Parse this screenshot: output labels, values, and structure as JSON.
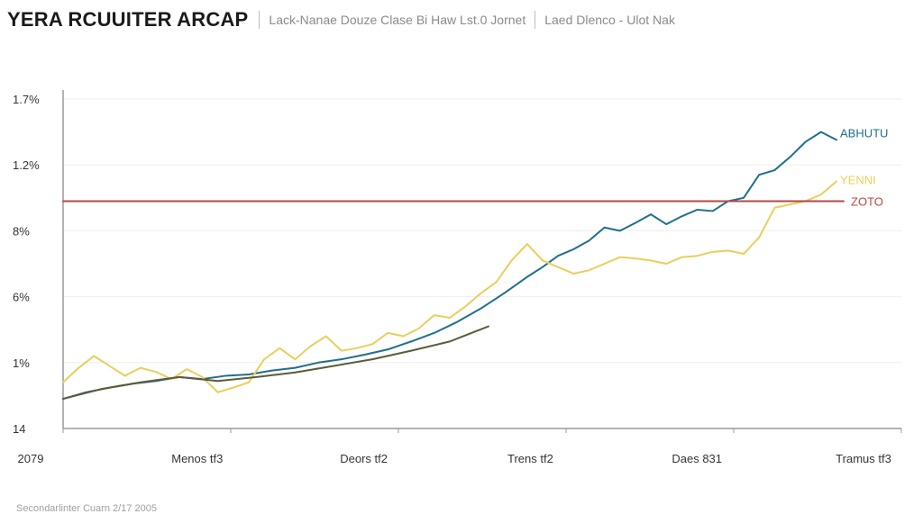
{
  "header": {
    "title": "YERA RCUUITER ARCAP",
    "subtitle_1": "Lack-Nanae Douze Clase Bi Haw Lst.0 Jornet",
    "subtitle_2": "Laed Dlenco - Ulot Nak"
  },
  "footer": {
    "source": "Secondarlinter Cuarn 2/17 2005"
  },
  "colors": {
    "blue": "#1f6f8b",
    "yellow": "#e8cf5c",
    "dark": "#5c5a3a",
    "red": "#b24a45",
    "axis": "#9a9a9a",
    "grid": "#eeeeee"
  },
  "chart_data": {
    "type": "line",
    "title": "YERA RCUUITER ARCAP",
    "xlabel": "",
    "ylabel": "",
    "grid": true,
    "x_categories": [
      "2079",
      "Menos tf3",
      "Deors tf2",
      "Trens tf2",
      "Daes 831",
      "Tramus tf3"
    ],
    "y_ticks": [
      "14",
      "1%",
      "6%",
      "8%",
      "1.2%",
      "1.7%"
    ],
    "xlim": [
      0,
      100
    ],
    "ylim": [
      0,
      5
    ],
    "series": [
      {
        "name": "ABHUTU",
        "color": "#1f6f8b",
        "x": [
          0,
          3,
          6,
          9,
          12,
          15,
          18,
          21,
          24,
          27,
          30,
          33,
          36,
          39,
          42,
          45,
          48,
          51,
          54,
          57,
          60,
          62,
          64,
          66,
          68,
          70,
          72,
          74,
          76,
          78,
          80,
          82,
          84,
          86,
          88,
          90,
          92,
          94,
          96,
          98,
          100
        ],
        "y": [
          0.45,
          0.55,
          0.62,
          0.68,
          0.72,
          0.78,
          0.75,
          0.8,
          0.82,
          0.88,
          0.92,
          1.0,
          1.05,
          1.12,
          1.2,
          1.32,
          1.45,
          1.62,
          1.82,
          2.05,
          2.3,
          2.45,
          2.62,
          2.72,
          2.85,
          3.05,
          3.0,
          3.12,
          3.25,
          3.1,
          3.22,
          3.32,
          3.3,
          3.45,
          3.5,
          3.85,
          3.92,
          4.12,
          4.35,
          4.5,
          4.38
        ]
      },
      {
        "name": "YENNI",
        "color": "#e8cf5c",
        "x": [
          0,
          2,
          4,
          6,
          8,
          10,
          12,
          14,
          16,
          18,
          20,
          22,
          24,
          26,
          28,
          30,
          32,
          34,
          36,
          38,
          40,
          42,
          44,
          46,
          48,
          50,
          52,
          54,
          56,
          58,
          60,
          62,
          64,
          66,
          68,
          70,
          72,
          74,
          76,
          78,
          80,
          82,
          84,
          86,
          88,
          90,
          92,
          94,
          96,
          98,
          100
        ],
        "y": [
          0.7,
          0.92,
          1.1,
          0.95,
          0.8,
          0.92,
          0.86,
          0.75,
          0.9,
          0.78,
          0.55,
          0.62,
          0.7,
          1.05,
          1.22,
          1.05,
          1.25,
          1.4,
          1.18,
          1.22,
          1.28,
          1.45,
          1.4,
          1.52,
          1.72,
          1.68,
          1.85,
          2.05,
          2.22,
          2.55,
          2.8,
          2.55,
          2.45,
          2.35,
          2.4,
          2.5,
          2.6,
          2.58,
          2.55,
          2.5,
          2.6,
          2.62,
          2.68,
          2.7,
          2.65,
          2.9,
          3.35,
          3.4,
          3.45,
          3.55,
          3.75
        ]
      },
      {
        "name": "",
        "color": "#5c5a3a",
        "x": [
          0,
          5,
          10,
          15,
          20,
          25,
          30,
          35,
          40,
          45,
          50,
          55
        ],
        "y": [
          0.45,
          0.6,
          0.7,
          0.78,
          0.72,
          0.78,
          0.85,
          0.95,
          1.05,
          1.18,
          1.32,
          1.55
        ]
      },
      {
        "name": "ZOTO",
        "color": "#b24a45",
        "x": [
          0,
          100
        ],
        "y": [
          3.45,
          3.45
        ]
      }
    ]
  }
}
